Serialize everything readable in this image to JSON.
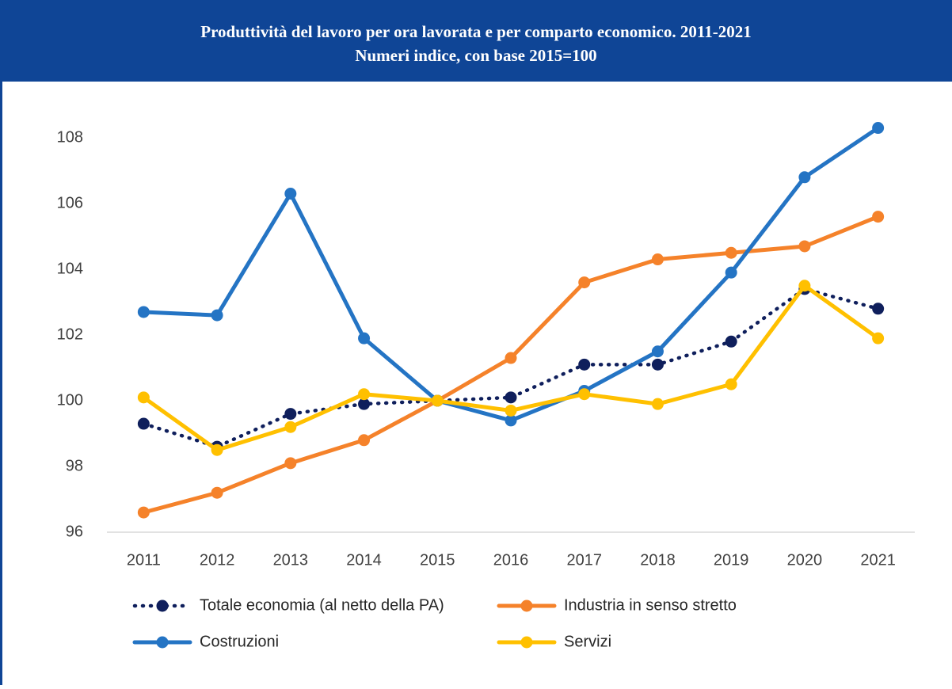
{
  "chart_data": {
    "type": "line",
    "title": "Produttività del lavoro per ora lavorata e per comparto economico. 2011-2021",
    "subtitle": "Numeri indice, con base 2015=100",
    "categories": [
      "2011",
      "2012",
      "2013",
      "2014",
      "2015",
      "2016",
      "2017",
      "2018",
      "2019",
      "2020",
      "2021"
    ],
    "series": [
      {
        "name": "Totale economia (al netto della PA)",
        "color": "#0f1f5c",
        "line_style": "dotted",
        "values": [
          99.3,
          98.6,
          99.6,
          99.9,
          100,
          100.1,
          101.1,
          101.1,
          101.8,
          103.4,
          102.8
        ]
      },
      {
        "name": "Industria in senso stretto",
        "color": "#f5822a",
        "line_style": "solid",
        "values": [
          96.6,
          97.2,
          98.1,
          98.8,
          100,
          101.3,
          103.6,
          104.3,
          104.5,
          104.7,
          105.6
        ]
      },
      {
        "name": "Costruzioni",
        "color": "#2474c4",
        "line_style": "solid",
        "values": [
          102.7,
          102.6,
          106.3,
          101.9,
          100,
          99.4,
          100.3,
          101.5,
          103.9,
          106.8,
          108.3
        ]
      },
      {
        "name": "Servizi",
        "color": "#ffc000",
        "line_style": "solid",
        "values": [
          100.1,
          98.5,
          99.2,
          100.2,
          100,
          99.7,
          100.2,
          99.9,
          100.5,
          103.5,
          101.9
        ]
      }
    ],
    "ylim": [
      96,
      109
    ],
    "yticks": [
      96,
      98,
      100,
      102,
      104,
      106,
      108
    ],
    "grid": false
  }
}
